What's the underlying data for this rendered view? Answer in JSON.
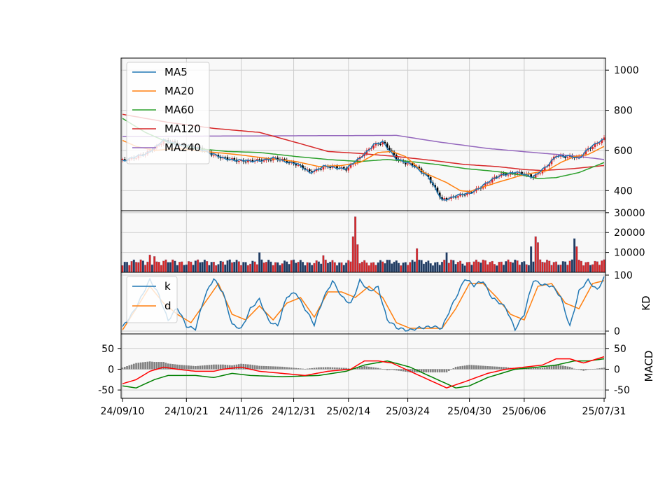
{
  "chart_data": {
    "type": "candlestick",
    "colors": {
      "MA5": "#1f77b4",
      "MA20": "#ff7f0e",
      "MA60": "#2ca02c",
      "MA120": "#d62728",
      "MA240": "#9467bd",
      "k": "#1f77b4",
      "d": "#ff7f0e",
      "macd_line": "#ff0000",
      "signal_line": "#008000",
      "hist": "#808080",
      "up": "#d62728",
      "down": "#000000",
      "vol_down": "#1f3a5f",
      "panel_bg": "#f8f8f8",
      "grid": "#cccccc"
    },
    "x_tick_labels": [
      "24/09/10",
      "24/10/21",
      "24/11/26",
      "24/12/31",
      "25/02/14",
      "25/03/24",
      "25/04/30",
      "25/06/06",
      "25/07/31"
    ],
    "x_tick_index": [
      0,
      28,
      52,
      75,
      99,
      125,
      152,
      176,
      211
    ],
    "n_days": 212,
    "price_panel": {
      "y_ticks": [
        400,
        600,
        800,
        1000
      ],
      "ylim": [
        300,
        1060
      ],
      "legend": [
        "MA5",
        "MA20",
        "MA60",
        "MA120",
        "MA240"
      ],
      "close_keypoints": [
        [
          0,
          550
        ],
        [
          10,
          580
        ],
        [
          18,
          650
        ],
        [
          24,
          630
        ],
        [
          30,
          620
        ],
        [
          36,
          600
        ],
        [
          44,
          560
        ],
        [
          56,
          545
        ],
        [
          66,
          560
        ],
        [
          76,
          535
        ],
        [
          82,
          490
        ],
        [
          88,
          520
        ],
        [
          98,
          510
        ],
        [
          104,
          560
        ],
        [
          110,
          630
        ],
        [
          114,
          640
        ],
        [
          120,
          560
        ],
        [
          128,
          520
        ],
        [
          134,
          470
        ],
        [
          140,
          350
        ],
        [
          146,
          375
        ],
        [
          152,
          385
        ],
        [
          160,
          440
        ],
        [
          166,
          480
        ],
        [
          172,
          490
        ],
        [
          180,
          470
        ],
        [
          186,
          520
        ],
        [
          190,
          575
        ],
        [
          196,
          570
        ],
        [
          200,
          560
        ],
        [
          204,
          610
        ],
        [
          211,
          655
        ]
      ],
      "ma20_keypoints": [
        [
          0,
          650
        ],
        [
          6,
          620
        ],
        [
          14,
          600
        ],
        [
          24,
          610
        ],
        [
          36,
          595
        ],
        [
          50,
          580
        ],
        [
          64,
          560
        ],
        [
          76,
          545
        ],
        [
          86,
          520
        ],
        [
          96,
          525
        ],
        [
          104,
          540
        ],
        [
          112,
          590
        ],
        [
          118,
          595
        ],
        [
          124,
          570
        ],
        [
          132,
          490
        ],
        [
          142,
          440
        ],
        [
          148,
          400
        ],
        [
          152,
          395
        ],
        [
          164,
          440
        ],
        [
          176,
          480
        ],
        [
          186,
          500
        ],
        [
          192,
          540
        ],
        [
          198,
          570
        ],
        [
          204,
          580
        ],
        [
          211,
          620
        ]
      ],
      "ma60_keypoints": [
        [
          0,
          760
        ],
        [
          10,
          690
        ],
        [
          20,
          640
        ],
        [
          32,
          610
        ],
        [
          46,
          595
        ],
        [
          60,
          590
        ],
        [
          76,
          570
        ],
        [
          90,
          555
        ],
        [
          104,
          545
        ],
        [
          116,
          555
        ],
        [
          126,
          545
        ],
        [
          138,
          530
        ],
        [
          150,
          510
        ],
        [
          164,
          495
        ],
        [
          176,
          475
        ],
        [
          182,
          460
        ],
        [
          190,
          465
        ],
        [
          200,
          490
        ],
        [
          211,
          540
        ]
      ],
      "ma120_keypoints": [
        [
          0,
          780
        ],
        [
          20,
          740
        ],
        [
          40,
          710
        ],
        [
          60,
          690
        ],
        [
          76,
          640
        ],
        [
          90,
          595
        ],
        [
          104,
          585
        ],
        [
          120,
          570
        ],
        [
          136,
          550
        ],
        [
          150,
          530
        ],
        [
          164,
          520
        ],
        [
          176,
          505
        ],
        [
          184,
          500
        ],
        [
          198,
          510
        ],
        [
          211,
          525
        ]
      ],
      "ma240_keypoints": [
        [
          0,
          670
        ],
        [
          120,
          675
        ],
        [
          140,
          640
        ],
        [
          160,
          610
        ],
        [
          180,
          590
        ],
        [
          196,
          575
        ],
        [
          211,
          555
        ]
      ]
    },
    "volume_panel": {
      "y_ticks": [
        10000,
        20000,
        30000
      ],
      "ylim": [
        0,
        31000
      ],
      "peaks": [
        [
          102,
          28000
        ],
        [
          101,
          18000
        ],
        [
          103,
          14000
        ],
        [
          129,
          12000
        ],
        [
          142,
          10000
        ],
        [
          179,
          13000
        ],
        [
          181,
          18000
        ],
        [
          182,
          15000
        ],
        [
          198,
          17000
        ],
        [
          199,
          13000
        ],
        [
          60,
          10000
        ],
        [
          88,
          8500
        ],
        [
          14,
          8000
        ],
        [
          12,
          8800
        ]
      ]
    },
    "kd_panel": {
      "y_ticks": [
        0,
        100
      ],
      "ylim": [
        -5,
        105
      ],
      "ylabel": "KD",
      "legend": [
        "k",
        "d"
      ],
      "k_keypoints": [
        [
          0,
          5
        ],
        [
          4,
          30
        ],
        [
          8,
          60
        ],
        [
          12,
          90
        ],
        [
          16,
          65
        ],
        [
          20,
          20
        ],
        [
          24,
          40
        ],
        [
          28,
          10
        ],
        [
          32,
          5
        ],
        [
          36,
          60
        ],
        [
          40,
          95
        ],
        [
          44,
          70
        ],
        [
          48,
          10
        ],
        [
          52,
          5
        ],
        [
          56,
          40
        ],
        [
          60,
          55
        ],
        [
          64,
          20
        ],
        [
          68,
          10
        ],
        [
          72,
          60
        ],
        [
          76,
          70
        ],
        [
          80,
          40
        ],
        [
          84,
          10
        ],
        [
          88,
          60
        ],
        [
          92,
          90
        ],
        [
          96,
          60
        ],
        [
          100,
          50
        ],
        [
          104,
          90
        ],
        [
          108,
          70
        ],
        [
          112,
          80
        ],
        [
          116,
          20
        ],
        [
          120,
          5
        ],
        [
          126,
          3
        ],
        [
          132,
          5
        ],
        [
          136,
          10
        ],
        [
          140,
          5
        ],
        [
          146,
          60
        ],
        [
          150,
          95
        ],
        [
          154,
          80
        ],
        [
          158,
          90
        ],
        [
          162,
          60
        ],
        [
          168,
          40
        ],
        [
          172,
          5
        ],
        [
          176,
          30
        ],
        [
          180,
          90
        ],
        [
          184,
          85
        ],
        [
          188,
          80
        ],
        [
          192,
          60
        ],
        [
          196,
          10
        ],
        [
          200,
          70
        ],
        [
          204,
          90
        ],
        [
          208,
          75
        ],
        [
          211,
          95
        ]
      ],
      "d_keypoints": [
        [
          0,
          2
        ],
        [
          6,
          40
        ],
        [
          12,
          80
        ],
        [
          18,
          50
        ],
        [
          24,
          30
        ],
        [
          30,
          15
        ],
        [
          36,
          50
        ],
        [
          42,
          85
        ],
        [
          48,
          30
        ],
        [
          54,
          20
        ],
        [
          60,
          45
        ],
        [
          66,
          20
        ],
        [
          72,
          50
        ],
        [
          78,
          60
        ],
        [
          84,
          25
        ],
        [
          90,
          70
        ],
        [
          96,
          70
        ],
        [
          102,
          60
        ],
        [
          108,
          80
        ],
        [
          114,
          60
        ],
        [
          120,
          15
        ],
        [
          126,
          5
        ],
        [
          134,
          5
        ],
        [
          140,
          5
        ],
        [
          146,
          40
        ],
        [
          152,
          85
        ],
        [
          158,
          85
        ],
        [
          164,
          60
        ],
        [
          170,
          30
        ],
        [
          176,
          20
        ],
        [
          182,
          80
        ],
        [
          188,
          85
        ],
        [
          194,
          50
        ],
        [
          200,
          40
        ],
        [
          206,
          85
        ],
        [
          211,
          90
        ]
      ]
    },
    "macd_panel": {
      "y_ticks": [
        -50,
        0,
        50
      ],
      "ylim": [
        -70,
        85
      ],
      "ylabel": "MACD",
      "macd_keypoints": [
        [
          0,
          -35
        ],
        [
          6,
          -25
        ],
        [
          12,
          -5
        ],
        [
          18,
          5
        ],
        [
          24,
          0
        ],
        [
          32,
          -5
        ],
        [
          40,
          -5
        ],
        [
          44,
          0
        ],
        [
          52,
          5
        ],
        [
          60,
          -5
        ],
        [
          70,
          -10
        ],
        [
          80,
          -15
        ],
        [
          90,
          -5
        ],
        [
          100,
          0
        ],
        [
          106,
          20
        ],
        [
          112,
          20
        ],
        [
          118,
          15
        ],
        [
          128,
          -10
        ],
        [
          138,
          -35
        ],
        [
          142,
          -45
        ],
        [
          150,
          -30
        ],
        [
          160,
          -10
        ],
        [
          168,
          0
        ],
        [
          176,
          5
        ],
        [
          184,
          10
        ],
        [
          190,
          25
        ],
        [
          196,
          25
        ],
        [
          202,
          15
        ],
        [
          211,
          30
        ]
      ],
      "signal_keypoints": [
        [
          0,
          -40
        ],
        [
          6,
          -45
        ],
        [
          14,
          -25
        ],
        [
          20,
          -15
        ],
        [
          32,
          -15
        ],
        [
          40,
          -20
        ],
        [
          48,
          -10
        ],
        [
          56,
          -15
        ],
        [
          70,
          -18
        ],
        [
          86,
          -15
        ],
        [
          98,
          -5
        ],
        [
          106,
          10
        ],
        [
          116,
          20
        ],
        [
          126,
          5
        ],
        [
          136,
          -20
        ],
        [
          146,
          -45
        ],
        [
          152,
          -40
        ],
        [
          160,
          -20
        ],
        [
          172,
          0
        ],
        [
          182,
          5
        ],
        [
          190,
          10
        ],
        [
          198,
          20
        ],
        [
          204,
          20
        ],
        [
          211,
          25
        ]
      ]
    }
  }
}
